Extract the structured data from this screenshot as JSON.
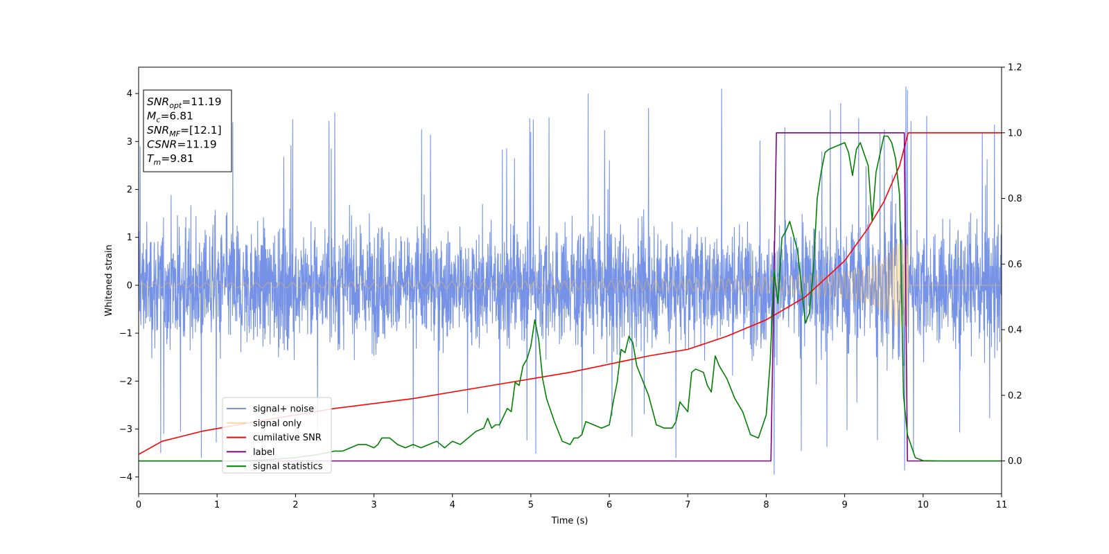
{
  "chart_data": {
    "type": "line",
    "xlabel": "Time (s)",
    "ylabel_left": "Whitened strain",
    "ylabel_right": "",
    "xlim": [
      0,
      11
    ],
    "ylim_left": [
      -4.35,
      4.55
    ],
    "ylim_right": [
      -0.1,
      1.2
    ],
    "x_ticks": [
      0,
      1,
      2,
      3,
      4,
      5,
      6,
      7,
      8,
      9,
      10,
      11
    ],
    "y_ticks_left": [
      -4,
      -3,
      -2,
      -1,
      0,
      1,
      2,
      3,
      4
    ],
    "y_ticks_right": [
      0.0,
      0.2,
      0.4,
      0.6,
      0.8,
      1.0,
      1.2
    ],
    "y_ticks_right_labels": [
      "0.0",
      "0.2",
      "0.4",
      "0.6",
      "0.8",
      "1.0",
      "1.2"
    ],
    "grid": false,
    "legend_position": "lower-left",
    "info_box": {
      "lines": [
        {
          "sym": "SNR",
          "sub": "opt",
          "val": "=11.19"
        },
        {
          "sym": "M",
          "sub": "c",
          "val": "=6.81"
        },
        {
          "sym": "SNR",
          "sub": "MF",
          "val": "=[12.1]"
        },
        {
          "sym": "CSNR",
          "sub": "",
          "val": "=11.19"
        },
        {
          "sym": "T",
          "sub": "m",
          "val": "=9.81"
        }
      ]
    },
    "series": [
      {
        "name": "signal+ noise",
        "axis": "left",
        "color": "#7592e6",
        "style": "noise",
        "amplitude_typical": 1.2,
        "amplitude_peak": 4.2,
        "representative_peaks": [
          {
            "x": 0.02,
            "y": 2.9
          },
          {
            "x": 0.28,
            "y": -3.5
          },
          {
            "x": 0.8,
            "y": -3.6
          },
          {
            "x": 1.2,
            "y": 3.4
          },
          {
            "x": 2.5,
            "y": 3.6
          },
          {
            "x": 3.5,
            "y": -3.4
          },
          {
            "x": 5.0,
            "y": 3.2
          },
          {
            "x": 5.73,
            "y": 4.0
          },
          {
            "x": 6.5,
            "y": 3.7
          },
          {
            "x": 6.85,
            "y": -3.6
          },
          {
            "x": 7.43,
            "y": 4.1
          },
          {
            "x": 8.1,
            "y": -3.95
          },
          {
            "x": 8.95,
            "y": 3.8
          },
          {
            "x": 9.78,
            "y": 4.15
          },
          {
            "x": 10.91,
            "y": 3.35
          }
        ]
      },
      {
        "name": "signal only",
        "axis": "left",
        "color": "#f5b94f",
        "style": "chirp",
        "merger_time": 9.81,
        "amplitude_start": 0.05,
        "amplitude_peak": 1.6
      },
      {
        "name": "cumilative SNR",
        "axis": "right",
        "color": "#ff0000",
        "x": [
          0,
          0.3,
          0.8,
          1.5,
          2.5,
          3.5,
          4.5,
          5.5,
          6.5,
          7.0,
          7.5,
          8.0,
          8.5,
          9.0,
          9.3,
          9.5,
          9.7,
          9.81,
          10.0,
          11.0
        ],
        "y": [
          0.02,
          0.06,
          0.09,
          0.12,
          0.16,
          0.19,
          0.23,
          0.27,
          0.32,
          0.34,
          0.38,
          0.43,
          0.5,
          0.61,
          0.71,
          0.79,
          0.9,
          1.0,
          1.0,
          1.0
        ]
      },
      {
        "name": "label",
        "axis": "right",
        "color": "#800080",
        "x": [
          0,
          8.06,
          8.13,
          9.76,
          9.8,
          11.0
        ],
        "y": [
          0,
          0,
          1,
          1,
          0,
          0
        ]
      },
      {
        "name": "signal statistics",
        "axis": "right",
        "color": "#008000",
        "x": [
          0,
          0.4,
          0.8,
          1.2,
          1.6,
          2.0,
          2.3,
          2.5,
          2.6,
          2.7,
          2.8,
          2.9,
          3.0,
          3.05,
          3.1,
          3.2,
          3.3,
          3.4,
          3.5,
          3.6,
          3.7,
          3.8,
          3.9,
          4.0,
          4.1,
          4.2,
          4.3,
          4.4,
          4.45,
          4.5,
          4.55,
          4.6,
          4.7,
          4.75,
          4.8,
          4.85,
          4.9,
          4.95,
          5.0,
          5.05,
          5.1,
          5.15,
          5.2,
          5.3,
          5.4,
          5.5,
          5.55,
          5.6,
          5.65,
          5.7,
          5.8,
          5.9,
          6.0,
          6.05,
          6.1,
          6.15,
          6.2,
          6.25,
          6.3,
          6.35,
          6.4,
          6.5,
          6.6,
          6.7,
          6.8,
          6.85,
          6.9,
          7.0,
          7.05,
          7.1,
          7.2,
          7.25,
          7.3,
          7.35,
          7.4,
          7.5,
          7.6,
          7.7,
          7.8,
          7.9,
          8.0,
          8.05,
          8.1,
          8.15,
          8.2,
          8.25,
          8.3,
          8.4,
          8.5,
          8.55,
          8.6,
          8.65,
          8.7,
          8.75,
          8.8,
          8.9,
          9.0,
          9.05,
          9.1,
          9.15,
          9.2,
          9.3,
          9.35,
          9.4,
          9.5,
          9.55,
          9.6,
          9.65,
          9.7,
          9.75,
          9.8,
          9.9,
          10.0,
          10.2,
          10.5,
          11.0
        ],
        "y": [
          0,
          0,
          0,
          0,
          0.003,
          0.01,
          0.02,
          0.03,
          0.03,
          0.04,
          0.05,
          0.05,
          0.04,
          0.05,
          0.07,
          0.07,
          0.05,
          0.04,
          0.05,
          0.04,
          0.05,
          0.06,
          0.04,
          0.06,
          0.05,
          0.07,
          0.09,
          0.1,
          0.13,
          0.1,
          0.11,
          0.11,
          0.16,
          0.15,
          0.24,
          0.23,
          0.29,
          0.31,
          0.35,
          0.43,
          0.37,
          0.25,
          0.19,
          0.12,
          0.06,
          0.05,
          0.07,
          0.07,
          0.08,
          0.12,
          0.11,
          0.1,
          0.11,
          0.18,
          0.24,
          0.34,
          0.33,
          0.38,
          0.36,
          0.29,
          0.26,
          0.2,
          0.11,
          0.1,
          0.1,
          0.12,
          0.18,
          0.15,
          0.27,
          0.28,
          0.27,
          0.23,
          0.21,
          0.32,
          0.29,
          0.25,
          0.19,
          0.15,
          0.08,
          0.07,
          0.14,
          0.3,
          0.58,
          0.48,
          0.68,
          0.7,
          0.73,
          0.64,
          0.42,
          0.45,
          0.58,
          0.8,
          0.88,
          0.94,
          0.95,
          0.96,
          0.97,
          0.94,
          0.87,
          0.95,
          0.97,
          0.9,
          0.73,
          0.88,
          0.99,
          0.99,
          0.97,
          0.92,
          0.81,
          0.2,
          0.08,
          0.01,
          0.001,
          0,
          0,
          0
        ]
      }
    ]
  }
}
